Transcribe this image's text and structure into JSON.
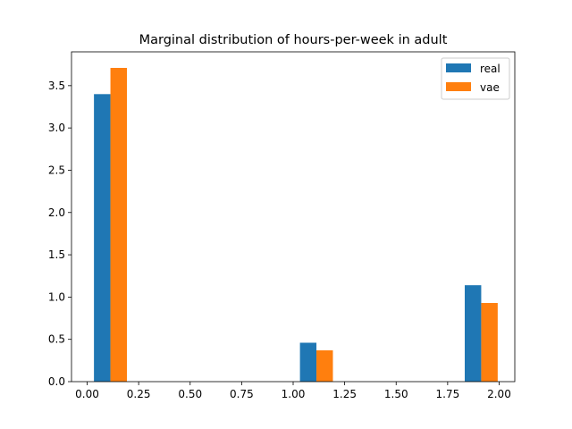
{
  "chart_data": {
    "type": "bar",
    "title": "Marginal distribution of hours-per-week in adult",
    "xlabel": "",
    "ylabel": "",
    "xlim": [
      -0.076,
      2.076
    ],
    "ylim": [
      0,
      3.9
    ],
    "xticks": [
      0.0,
      0.25,
      0.5,
      0.75,
      1.0,
      1.25,
      1.5,
      1.75,
      2.0
    ],
    "xtick_labels": [
      "0.00",
      "0.25",
      "0.50",
      "0.75",
      "1.00",
      "1.25",
      "1.50",
      "1.75",
      "2.00"
    ],
    "yticks": [
      0.0,
      0.5,
      1.0,
      1.5,
      2.0,
      2.5,
      3.0,
      3.5
    ],
    "ytick_labels": [
      "0.0",
      "0.5",
      "1.0",
      "1.5",
      "2.0",
      "2.5",
      "3.0",
      "3.5"
    ],
    "legend_position": "top-right",
    "grid": false,
    "series": [
      {
        "name": "real",
        "color": "#1f77b4",
        "bars": [
          {
            "x0": 0.033,
            "x1": 0.113,
            "value": 3.4
          },
          {
            "x0": 1.033,
            "x1": 1.113,
            "value": 0.46
          },
          {
            "x0": 1.833,
            "x1": 1.913,
            "value": 1.14
          }
        ]
      },
      {
        "name": "vae",
        "color": "#ff7f0e",
        "bars": [
          {
            "x0": 0.113,
            "x1": 0.193,
            "value": 3.71
          },
          {
            "x0": 1.113,
            "x1": 1.193,
            "value": 0.37
          },
          {
            "x0": 1.913,
            "x1": 1.993,
            "value": 0.93
          }
        ]
      }
    ]
  }
}
